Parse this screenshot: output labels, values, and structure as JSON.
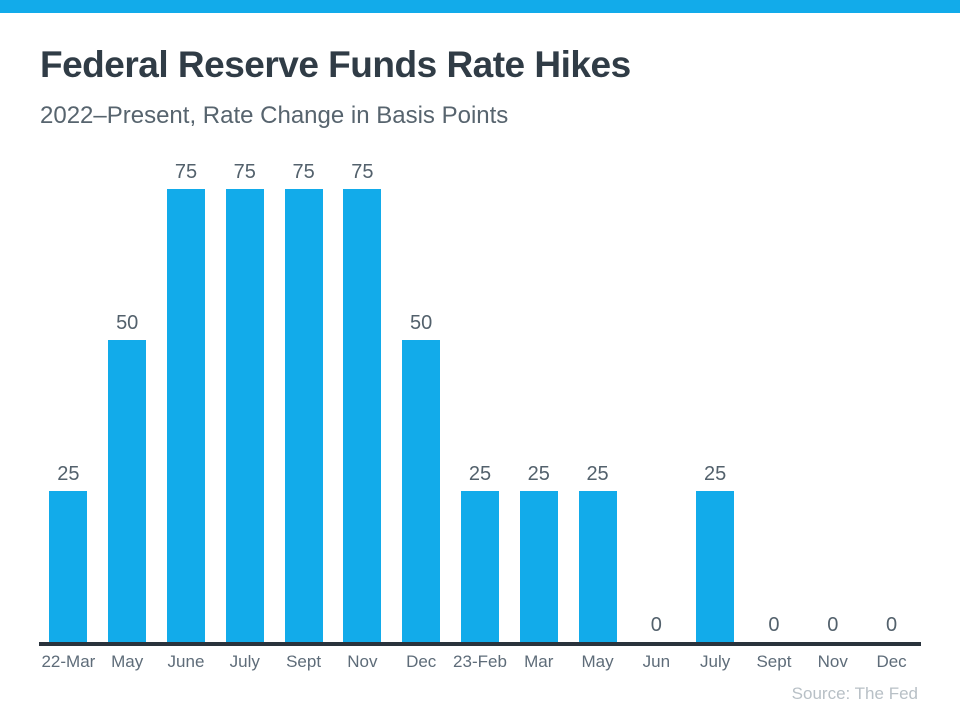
{
  "header": {
    "title": "Federal Reserve Funds Rate Hikes",
    "subtitle": "2022–Present, Rate Change in Basis Points"
  },
  "chart_data": {
    "type": "bar",
    "title": "Federal Reserve Funds Rate Hikes",
    "subtitle": "2022–Present, Rate Change in Basis Points",
    "categories": [
      "22-Mar",
      "May",
      "June",
      "July",
      "Sept",
      "Nov",
      "Dec",
      "23-Feb",
      "Mar",
      "May",
      "Jun",
      "July",
      "Sept",
      "Nov",
      "Dec"
    ],
    "values": [
      25,
      50,
      75,
      75,
      75,
      75,
      50,
      25,
      25,
      25,
      0,
      25,
      0,
      0,
      0
    ],
    "xlabel": "",
    "ylabel": "Rate Change in Basis Points",
    "ylim": [
      0,
      80
    ],
    "grid": false,
    "legend": false,
    "value_labels_shown": true,
    "bar_color": "#12ABEA"
  },
  "footer": {
    "source": "Source: The Fed"
  },
  "colors": {
    "accent": "#12ABEA",
    "title_text": "#303C46",
    "subtitle_text": "#57646E",
    "value_label": "#53616C",
    "axis_line": "#2A333C",
    "tick_label": "#5E6C79",
    "source_text": "#B8C0C6"
  }
}
